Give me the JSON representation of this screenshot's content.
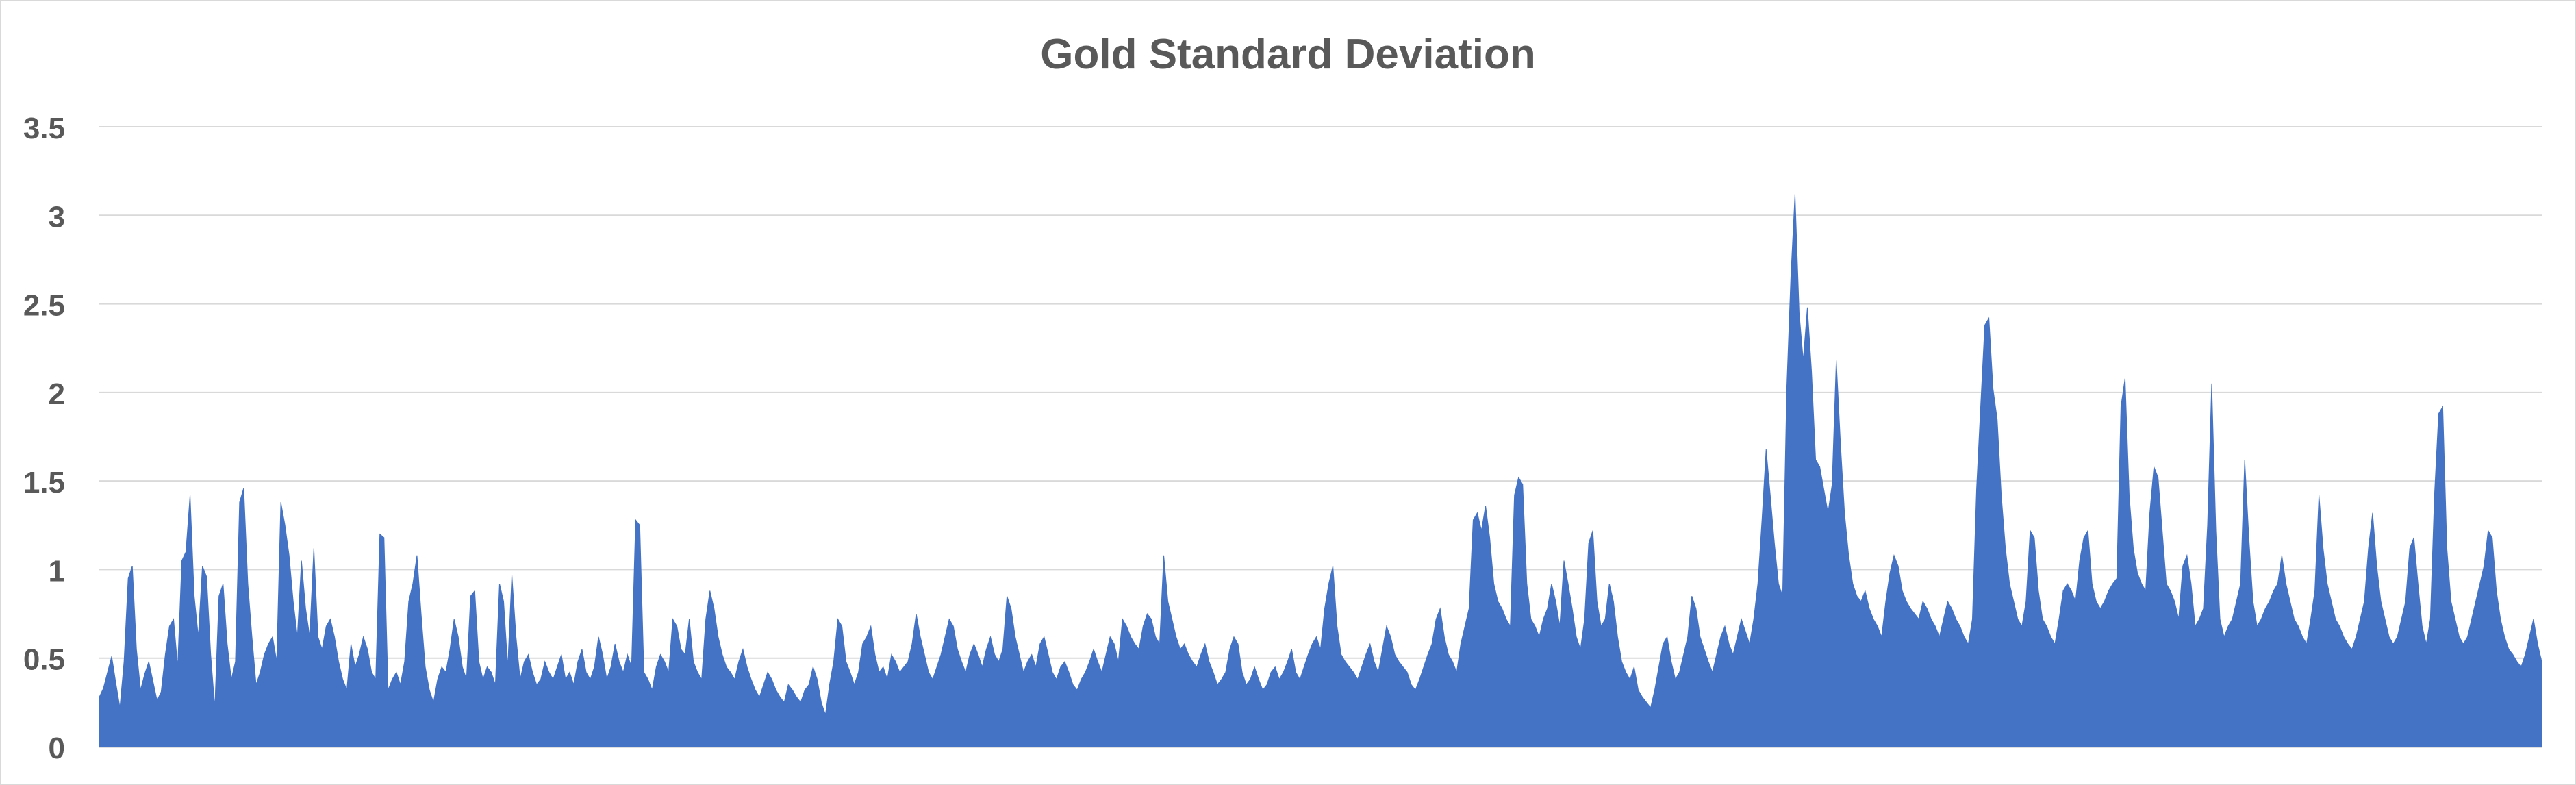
{
  "chart_data": {
    "type": "area",
    "title": "Gold Standard Deviation",
    "xlabel": "",
    "ylabel": "",
    "ylim": [
      0,
      3.5
    ],
    "yticks": [
      "0",
      "0.5",
      "1",
      "1.5",
      "2",
      "2.5",
      "3",
      "3.5"
    ],
    "grid": true,
    "legend": "none",
    "color": "#4472C4",
    "series": [
      {
        "values": [
          0.28,
          0.33,
          0.42,
          0.51,
          0.36,
          0.22,
          0.48,
          0.95,
          1.02,
          0.55,
          0.32,
          0.41,
          0.48,
          0.37,
          0.26,
          0.31,
          0.52,
          0.68,
          0.72,
          0.45,
          1.05,
          1.1,
          1.42,
          0.85,
          0.62,
          1.02,
          0.96,
          0.52,
          0.22,
          0.85,
          0.92,
          0.58,
          0.38,
          0.48,
          1.38,
          1.46,
          0.92,
          0.62,
          0.35,
          0.42,
          0.52,
          0.58,
          0.62,
          0.48,
          1.38,
          1.25,
          1.08,
          0.82,
          0.62,
          1.05,
          0.78,
          0.62,
          1.12,
          0.62,
          0.55,
          0.68,
          0.72,
          0.62,
          0.48,
          0.38,
          0.32,
          0.58,
          0.45,
          0.52,
          0.62,
          0.55,
          0.42,
          0.38,
          1.2,
          1.18,
          0.32,
          0.38,
          0.42,
          0.35,
          0.48,
          0.82,
          0.92,
          1.08,
          0.75,
          0.45,
          0.32,
          0.25,
          0.38,
          0.45,
          0.42,
          0.55,
          0.72,
          0.62,
          0.45,
          0.38,
          0.85,
          0.88,
          0.48,
          0.38,
          0.45,
          0.42,
          0.35,
          0.92,
          0.82,
          0.45,
          0.97,
          0.62,
          0.38,
          0.48,
          0.52,
          0.42,
          0.35,
          0.38,
          0.48,
          0.42,
          0.38,
          0.45,
          0.52,
          0.38,
          0.42,
          0.35,
          0.48,
          0.55,
          0.42,
          0.38,
          0.45,
          0.62,
          0.52,
          0.38,
          0.45,
          0.58,
          0.48,
          0.42,
          0.52,
          0.45,
          1.28,
          1.25,
          0.42,
          0.38,
          0.32,
          0.45,
          0.52,
          0.48,
          0.42,
          0.72,
          0.68,
          0.55,
          0.52,
          0.72,
          0.48,
          0.42,
          0.38,
          0.72,
          0.88,
          0.78,
          0.62,
          0.52,
          0.45,
          0.42,
          0.38,
          0.48,
          0.55,
          0.45,
          0.38,
          0.32,
          0.28,
          0.35,
          0.42,
          0.38,
          0.32,
          0.28,
          0.25,
          0.35,
          0.32,
          0.28,
          0.25,
          0.32,
          0.35,
          0.45,
          0.38,
          0.25,
          0.18,
          0.35,
          0.48,
          0.72,
          0.68,
          0.48,
          0.42,
          0.35,
          0.42,
          0.58,
          0.62,
          0.68,
          0.52,
          0.42,
          0.45,
          0.38,
          0.52,
          0.48,
          0.42,
          0.45,
          0.48,
          0.58,
          0.75,
          0.62,
          0.52,
          0.42,
          0.38,
          0.45,
          0.52,
          0.62,
          0.72,
          0.68,
          0.55,
          0.48,
          0.42,
          0.52,
          0.58,
          0.52,
          0.45,
          0.55,
          0.62,
          0.52,
          0.48,
          0.55,
          0.85,
          0.78,
          0.62,
          0.52,
          0.42,
          0.48,
          0.52,
          0.45,
          0.58,
          0.62,
          0.52,
          0.42,
          0.38,
          0.45,
          0.48,
          0.42,
          0.35,
          0.32,
          0.38,
          0.42,
          0.48,
          0.55,
          0.48,
          0.42,
          0.52,
          0.62,
          0.58,
          0.48,
          0.72,
          0.68,
          0.62,
          0.58,
          0.55,
          0.68,
          0.75,
          0.72,
          0.62,
          0.58,
          1.08,
          0.82,
          0.72,
          0.62,
          0.55,
          0.58,
          0.52,
          0.48,
          0.45,
          0.52,
          0.58,
          0.48,
          0.42,
          0.35,
          0.38,
          0.42,
          0.55,
          0.62,
          0.58,
          0.42,
          0.35,
          0.38,
          0.45,
          0.38,
          0.32,
          0.35,
          0.42,
          0.45,
          0.38,
          0.42,
          0.48,
          0.55,
          0.42,
          0.38,
          0.45,
          0.52,
          0.58,
          0.62,
          0.55,
          0.78,
          0.92,
          1.02,
          0.68,
          0.52,
          0.48,
          0.45,
          0.42,
          0.38,
          0.45,
          0.52,
          0.58,
          0.48,
          0.42,
          0.55,
          0.68,
          0.62,
          0.52,
          0.48,
          0.45,
          0.42,
          0.35,
          0.32,
          0.38,
          0.45,
          0.52,
          0.58,
          0.72,
          0.78,
          0.62,
          0.52,
          0.48,
          0.42,
          0.58,
          0.68,
          0.78,
          1.28,
          1.32,
          1.22,
          1.36,
          1.18,
          0.92,
          0.82,
          0.78,
          0.72,
          0.68,
          1.42,
          1.52,
          1.48,
          0.92,
          0.72,
          0.68,
          0.62,
          0.72,
          0.78,
          0.92,
          0.82,
          0.68,
          1.05,
          0.92,
          0.78,
          0.62,
          0.55,
          0.72,
          1.15,
          1.22,
          0.82,
          0.68,
          0.72,
          0.92,
          0.82,
          0.62,
          0.48,
          0.42,
          0.38,
          0.45,
          0.32,
          0.28,
          0.25,
          0.22,
          0.32,
          0.45,
          0.58,
          0.62,
          0.48,
          0.38,
          0.42,
          0.52,
          0.62,
          0.85,
          0.78,
          0.62,
          0.55,
          0.48,
          0.42,
          0.52,
          0.62,
          0.68,
          0.58,
          0.52,
          0.62,
          0.72,
          0.65,
          0.58,
          0.72,
          0.92,
          1.28,
          1.68,
          1.42,
          1.15,
          0.92,
          0.85,
          2.02,
          2.65,
          3.12,
          2.45,
          2.18,
          2.48,
          2.12,
          1.62,
          1.58,
          1.45,
          1.32,
          1.48,
          2.18,
          1.72,
          1.32,
          1.08,
          0.92,
          0.85,
          0.82,
          0.88,
          0.78,
          0.72,
          0.68,
          0.62,
          0.82,
          0.98,
          1.08,
          1.02,
          0.88,
          0.82,
          0.78,
          0.75,
          0.72,
          0.82,
          0.78,
          0.72,
          0.68,
          0.62,
          0.72,
          0.82,
          0.78,
          0.72,
          0.68,
          0.62,
          0.58,
          0.72,
          1.45,
          1.92,
          2.38,
          2.42,
          2.02,
          1.85,
          1.42,
          1.12,
          0.92,
          0.82,
          0.72,
          0.68,
          0.82,
          1.22,
          1.18,
          0.88,
          0.72,
          0.68,
          0.62,
          0.58,
          0.72,
          0.88,
          0.92,
          0.88,
          0.82,
          1.05,
          1.18,
          1.22,
          0.92,
          0.82,
          0.78,
          0.82,
          0.88,
          0.92,
          0.95,
          1.92,
          2.08,
          1.42,
          1.12,
          0.98,
          0.92,
          0.88,
          1.32,
          1.58,
          1.52,
          1.22,
          0.92,
          0.88,
          0.82,
          0.72,
          1.02,
          1.08,
          0.92,
          0.68,
          0.72,
          0.78,
          1.25,
          2.05,
          1.22,
          0.72,
          0.62,
          0.68,
          0.72,
          0.82,
          0.92,
          1.62,
          1.18,
          0.82,
          0.68,
          0.72,
          0.78,
          0.82,
          0.88,
          0.92,
          1.08,
          0.92,
          0.82,
          0.72,
          0.68,
          0.62,
          0.58,
          0.72,
          0.88,
          1.42,
          1.12,
          0.92,
          0.82,
          0.72,
          0.68,
          0.62,
          0.58,
          0.55,
          0.62,
          0.72,
          0.82,
          1.12,
          1.32,
          1.02,
          0.82,
          0.72,
          0.62,
          0.58,
          0.62,
          0.72,
          0.82,
          1.12,
          1.18,
          0.92,
          0.68,
          0.58,
          0.72,
          1.42,
          1.88,
          1.92,
          1.12,
          0.82,
          0.72,
          0.62,
          0.58,
          0.62,
          0.72,
          0.82,
          0.92,
          1.02,
          1.22,
          1.18,
          0.88,
          0.72,
          0.62,
          0.55,
          0.52,
          0.48,
          0.45,
          0.52,
          0.62,
          0.72,
          0.58,
          0.48
        ]
      }
    ]
  }
}
